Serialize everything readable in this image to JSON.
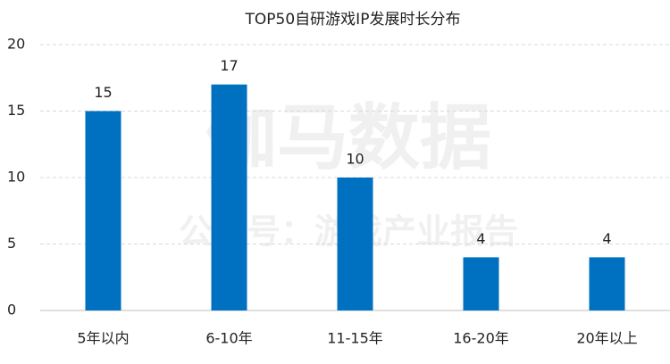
{
  "chart_data": {
    "type": "bar",
    "title": "TOP50自研游戏IP发展时长分布",
    "categories": [
      "5年以内",
      "6-10年",
      "11-15年",
      "16-20年",
      "20年以上"
    ],
    "values": [
      15,
      17,
      10,
      4,
      4
    ],
    "color": "#0070c0",
    "ylim": [
      0,
      20
    ],
    "yticks": [
      0,
      5,
      10,
      15,
      20
    ],
    "grid": true,
    "watermark": [
      "伽马数据",
      "公众号：游戏产业报告"
    ]
  }
}
